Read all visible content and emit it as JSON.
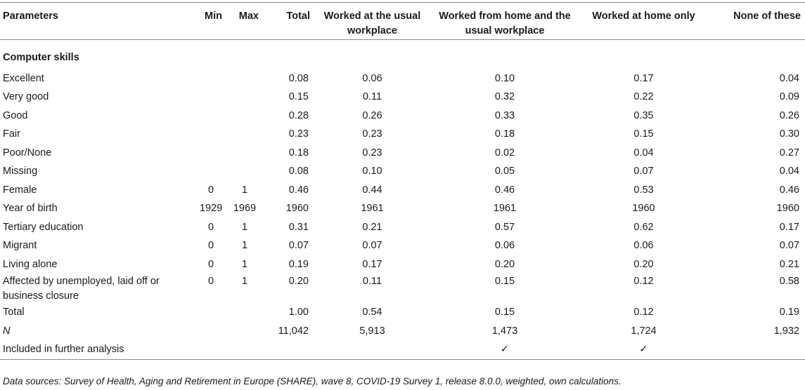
{
  "headers": {
    "parameters": "Parameters",
    "min": "Min",
    "max": "Max",
    "total": "Total",
    "worked_usual": "Worked at the usual workplace",
    "worked_home_usual": "Worked from home and the usual workplace",
    "worked_home_only": "Worked at home only",
    "none": "None of these"
  },
  "section": "Computer skills",
  "rows": [
    {
      "label": "Excellent",
      "min": "",
      "max": "",
      "total": "0.08",
      "c1": "0.06",
      "c2": "0.10",
      "c3": "0.17",
      "c4": "0.04"
    },
    {
      "label": "Very good",
      "min": "",
      "max": "",
      "total": "0.15",
      "c1": "0.11",
      "c2": "0.32",
      "c3": "0.22",
      "c4": "0.09"
    },
    {
      "label": "Good",
      "min": "",
      "max": "",
      "total": "0.28",
      "c1": "0.26",
      "c2": "0.33",
      "c3": "0.35",
      "c4": "0.26"
    },
    {
      "label": "Fair",
      "min": "",
      "max": "",
      "total": "0.23",
      "c1": "0.23",
      "c2": "0.18",
      "c3": "0.15",
      "c4": "0.30"
    },
    {
      "label": "Poor/None",
      "min": "",
      "max": "",
      "total": "0.18",
      "c1": "0.23",
      "c2": "0.02",
      "c3": "0.04",
      "c4": "0.27"
    },
    {
      "label": "Missing",
      "min": "",
      "max": "",
      "total": "0.08",
      "c1": "0.10",
      "c2": "0.05",
      "c3": "0.07",
      "c4": "0.04"
    },
    {
      "label": "Female",
      "min": "0",
      "max": "1",
      "total": "0.46",
      "c1": "0.44",
      "c2": "0.46",
      "c3": "0.53",
      "c4": "0.46"
    },
    {
      "label": "Year of birth",
      "min": "1929",
      "max": "1969",
      "total": "1960",
      "c1": "1961",
      "c2": "1961",
      "c3": "1960",
      "c4": "1960"
    },
    {
      "label": "Tertiary education",
      "min": "0",
      "max": "1",
      "total": "0.31",
      "c1": "0.21",
      "c2": "0.57",
      "c3": "0.62",
      "c4": "0.17"
    },
    {
      "label": "Migrant",
      "min": "0",
      "max": "1",
      "total": "0.07",
      "c1": "0.07",
      "c2": "0.06",
      "c3": "0.06",
      "c4": "0.07"
    },
    {
      "label": "Living alone",
      "min": "0",
      "max": "1",
      "total": "0.19",
      "c1": "0.17",
      "c2": "0.20",
      "c3": "0.20",
      "c4": "0.21"
    },
    {
      "label": "Affected by unemployed, laid off or business closure",
      "min": "0",
      "max": "1",
      "total": "0.20",
      "c1": "0.11",
      "c2": "0.15",
      "c3": "0.12",
      "c4": "0.58"
    },
    {
      "label": "Total",
      "min": "",
      "max": "",
      "total": "1.00",
      "c1": "0.54",
      "c2": "0.15",
      "c3": "0.12",
      "c4": "0.19"
    },
    {
      "label": "N",
      "min": "",
      "max": "",
      "total": "11,042",
      "c1": "5,913",
      "c2": "1,473",
      "c3": "1,724",
      "c4": "1,932"
    },
    {
      "label": "Included in further analysis",
      "min": "",
      "max": "",
      "total": "",
      "c1": "",
      "c2": "✓",
      "c3": "✓",
      "c4": ""
    }
  ],
  "note": "Data sources: Survey of Health, Aging and Retirement in Europe (SHARE), wave 8, COVID-19 Survey 1, release 8.0.0, weighted, own calculations."
}
